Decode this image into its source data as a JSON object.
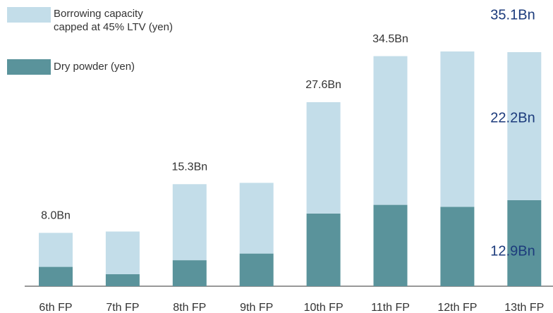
{
  "chart_data": {
    "type": "stacked_bar",
    "categories": [
      "6th FP",
      "7th FP",
      "8th FP",
      "9th FP",
      "10th FP",
      "11th FP",
      "12th FP",
      "13th FP"
    ],
    "series": [
      {
        "name": "Dry powder (yen)",
        "color": "#5a939b",
        "values": [
          2.9,
          1.8,
          3.9,
          4.9,
          10.9,
          12.2,
          11.9,
          12.9
        ],
        "value_labels": [
          null,
          null,
          null,
          null,
          null,
          null,
          null,
          "12.9Bn"
        ]
      },
      {
        "name": "Borrowing capacity capped at 45% LTV (yen)",
        "color": "#c3dde9",
        "values": [
          5.1,
          6.4,
          11.4,
          10.6,
          16.7,
          22.3,
          23.3,
          22.2
        ],
        "value_labels": [
          null,
          null,
          null,
          null,
          null,
          null,
          null,
          "22.2Bn"
        ]
      }
    ],
    "total_labels": [
      {
        "category": 0,
        "value": 8.0,
        "label": "8.0Bn"
      },
      {
        "category": 2,
        "value": 15.3,
        "label": "15.3Bn"
      },
      {
        "category": 4,
        "value": 27.6,
        "label": "27.6Bn"
      },
      {
        "category": 5,
        "value": 34.5,
        "label": "34.5Bn"
      },
      {
        "category": 7,
        "value": 35.1,
        "label": "35.1Bn"
      }
    ]
  }
}
